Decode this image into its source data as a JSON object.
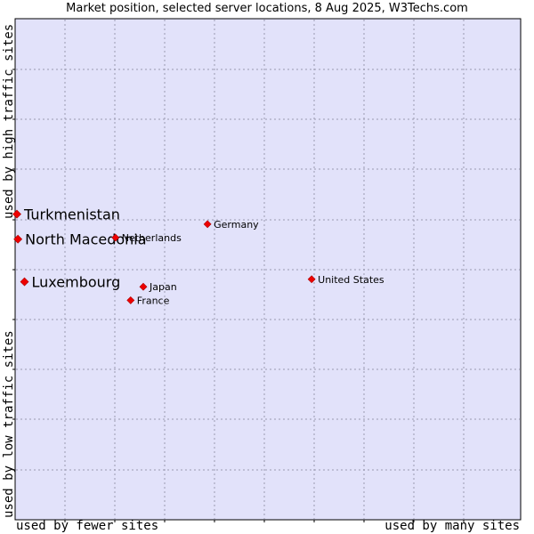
{
  "chart_data": {
    "type": "scatter",
    "title": "Market position, selected server locations, 8 Aug 2025, W3Techs.com",
    "xlabel_low": "used by fewer sites",
    "xlabel_high": "used by many sites",
    "ylabel_low": "used by low traffic sites",
    "ylabel_high": "used by high traffic sites",
    "xlim": [
      0,
      10
    ],
    "ylim": [
      0,
      10
    ],
    "grid": true,
    "background": "#e2e2fa",
    "point_color": "#ee0000",
    "points": [
      {
        "name": "Turkmenistan",
        "x": 0.0,
        "y": 6.1,
        "highlight": true
      },
      {
        "name": "North Macedonia",
        "x": 0.02,
        "y": 5.6,
        "highlight": true
      },
      {
        "name": "Luxembourg",
        "x": 0.15,
        "y": 4.75,
        "highlight": true
      },
      {
        "name": "Germany",
        "x": 3.77,
        "y": 5.9,
        "highlight": false
      },
      {
        "name": "Netherlands",
        "x": 1.95,
        "y": 5.63,
        "highlight": false
      },
      {
        "name": "Japan",
        "x": 2.5,
        "y": 4.65,
        "highlight": false
      },
      {
        "name": "France",
        "x": 2.25,
        "y": 4.38,
        "highlight": false
      },
      {
        "name": "United States",
        "x": 5.83,
        "y": 4.8,
        "highlight": false
      }
    ]
  }
}
